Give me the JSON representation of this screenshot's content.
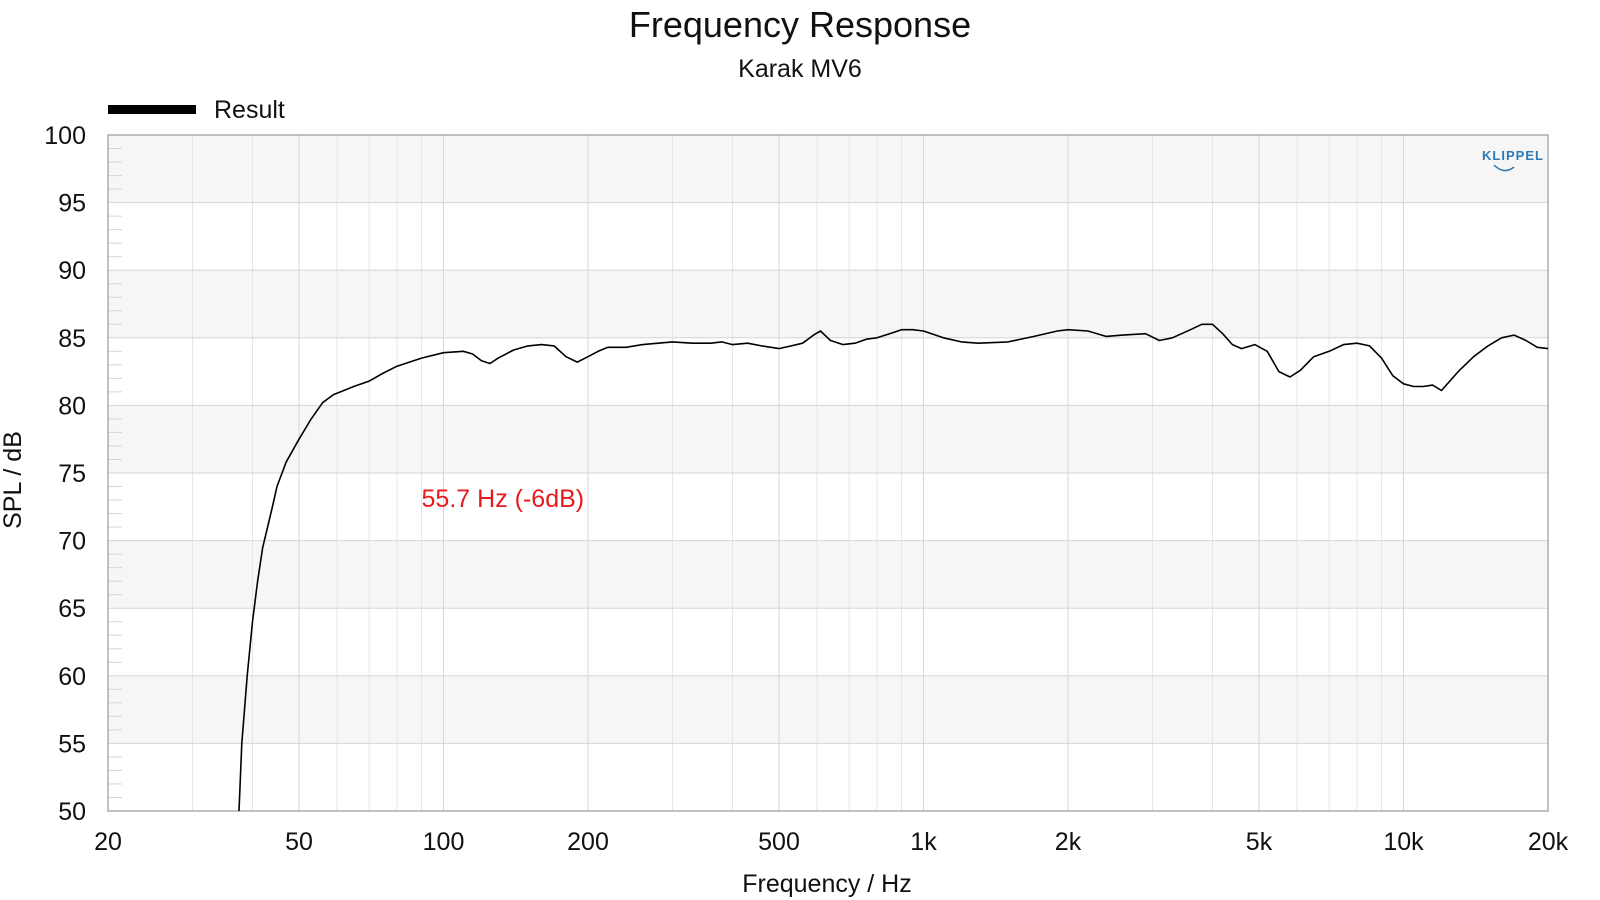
{
  "colors": {
    "curve": "#000000",
    "annotation": "#e8191d",
    "band": "#f6f6f6",
    "grid_major": "#d6d6d6",
    "grid_minor": "#e6e6e6",
    "frame": "#a8a8a8",
    "logo": "#2a7ab8"
  },
  "chart_data": {
    "type": "line",
    "title": "Frequency Response",
    "subtitle": "Karak MV6",
    "xlabel": "Frequency / Hz",
    "ylabel": "SPL / dB",
    "x_scale": "log",
    "xlim": [
      20,
      20000
    ],
    "ylim": [
      50,
      100
    ],
    "x_ticks": [
      20,
      50,
      100,
      200,
      500,
      1000,
      2000,
      5000,
      10000,
      20000
    ],
    "x_tick_labels": [
      "20",
      "50",
      "100",
      "200",
      "500",
      "1k",
      "2k",
      "5k",
      "10k",
      "20k"
    ],
    "y_ticks": [
      50,
      55,
      60,
      65,
      70,
      75,
      80,
      85,
      90,
      95,
      100
    ],
    "y_tick_labels": [
      "50",
      "55",
      "60",
      "65",
      "70",
      "75",
      "80",
      "85",
      "90",
      "95",
      "100"
    ],
    "grid": true,
    "legend_position": "top-left",
    "logo_text": "KLIPPEL",
    "annotations": [
      {
        "text": "55.7 Hz (-6dB)",
        "x": 90,
        "y": 72.5
      }
    ],
    "series": [
      {
        "name": "Result",
        "x": [
          37.5,
          38,
          39,
          40,
          41,
          42,
          43,
          44,
          45,
          47,
          50,
          53,
          56,
          59,
          62,
          65,
          70,
          75,
          80,
          90,
          100,
          110,
          115,
          120,
          125,
          130,
          140,
          150,
          160,
          170,
          180,
          190,
          200,
          210,
          220,
          240,
          260,
          280,
          300,
          330,
          360,
          380,
          400,
          430,
          460,
          500,
          530,
          560,
          590,
          610,
          640,
          680,
          720,
          760,
          800,
          850,
          900,
          950,
          1000,
          1100,
          1200,
          1300,
          1500,
          1700,
          1900,
          2000,
          2200,
          2400,
          2600,
          2900,
          3100,
          3300,
          3600,
          3800,
          4000,
          4200,
          4400,
          4600,
          4900,
          5200,
          5500,
          5800,
          6100,
          6500,
          7000,
          7500,
          8000,
          8500,
          9000,
          9500,
          10000,
          10500,
          11000,
          11500,
          12000,
          13000,
          14000,
          15000,
          16000,
          17000,
          18000,
          19000,
          20000
        ],
        "y": [
          50,
          55,
          60,
          64,
          67,
          69.5,
          71,
          72.5,
          74,
          75.8,
          77.5,
          79,
          80.2,
          80.8,
          81.1,
          81.4,
          81.8,
          82.4,
          82.9,
          83.5,
          83.9,
          84.0,
          83.8,
          83.3,
          83.1,
          83.5,
          84.1,
          84.4,
          84.5,
          84.4,
          83.6,
          83.2,
          83.6,
          84.0,
          84.3,
          84.3,
          84.5,
          84.6,
          84.7,
          84.6,
          84.6,
          84.7,
          84.5,
          84.6,
          84.4,
          84.2,
          84.4,
          84.6,
          85.2,
          85.5,
          84.8,
          84.5,
          84.6,
          84.9,
          85.0,
          85.3,
          85.6,
          85.6,
          85.5,
          85.0,
          84.7,
          84.6,
          84.7,
          85.1,
          85.5,
          85.6,
          85.5,
          85.1,
          85.2,
          85.3,
          84.8,
          85.0,
          85.6,
          86.0,
          86.0,
          85.3,
          84.5,
          84.2,
          84.5,
          84.0,
          82.5,
          82.1,
          82.6,
          83.6,
          84.0,
          84.5,
          84.6,
          84.4,
          83.5,
          82.2,
          81.6,
          81.4,
          81.4,
          81.5,
          81.1,
          82.5,
          83.6,
          84.4,
          85.0,
          85.2,
          84.8,
          84.3,
          84.2
        ]
      }
    ]
  }
}
